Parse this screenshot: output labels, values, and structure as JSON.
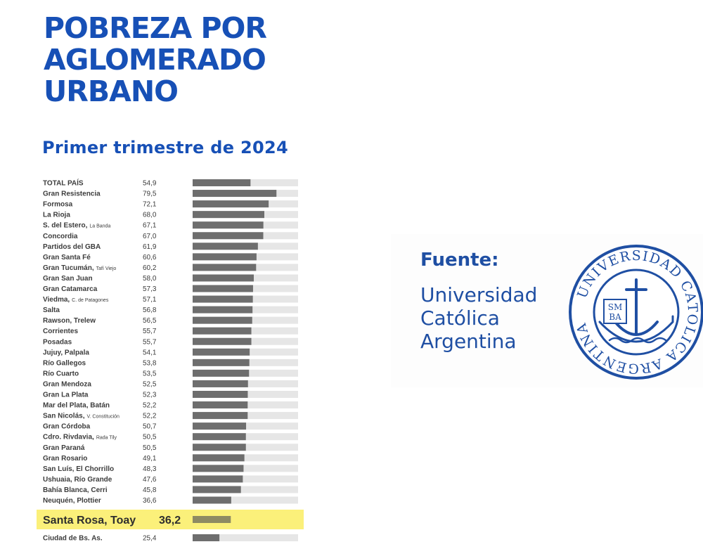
{
  "chart_data": {
    "type": "bar",
    "orientation": "horizontal",
    "title": "POBREZA POR\nAGLOMERADO\nURBANO",
    "subtitle": "Primer trimestre de 2024",
    "xlim": [
      0,
      100
    ],
    "rows": [
      {
        "label": "TOTAL PAÍS",
        "sub": "",
        "value_label": "54,9",
        "value": 54.9
      },
      {
        "label": "Gran Resistencia",
        "sub": "",
        "value_label": "79,5",
        "value": 79.5
      },
      {
        "label": "Formosa",
        "sub": "",
        "value_label": "72,1",
        "value": 72.1
      },
      {
        "label": "La Rioja",
        "sub": "",
        "value_label": "68,0",
        "value": 68.0
      },
      {
        "label": "S. del Estero,",
        "sub": "La Banda",
        "value_label": "67,1",
        "value": 67.1
      },
      {
        "label": "Concordia",
        "sub": "",
        "value_label": "67,0",
        "value": 67.0
      },
      {
        "label": "Partidos del GBA",
        "sub": "",
        "value_label": "61,9",
        "value": 61.9
      },
      {
        "label": "Gran Santa Fé",
        "sub": "",
        "value_label": "60,6",
        "value": 60.6
      },
      {
        "label": "Gran Tucumán,",
        "sub": "Tafí Viejo",
        "value_label": "60,2",
        "value": 60.2
      },
      {
        "label": "Gran San Juan",
        "sub": "",
        "value_label": "58,0",
        "value": 58.0
      },
      {
        "label": "Gran Catamarca",
        "sub": "",
        "value_label": "57,3",
        "value": 57.3
      },
      {
        "label": "Viedma,",
        "sub": "C. de Patagones",
        "value_label": "57,1",
        "value": 57.1
      },
      {
        "label": "Salta",
        "sub": "",
        "value_label": "56,8",
        "value": 56.8
      },
      {
        "label": "Rawson, Trelew",
        "sub": "",
        "value_label": "56,5",
        "value": 56.5
      },
      {
        "label": "Corrientes",
        "sub": "",
        "value_label": "55,7",
        "value": 55.7
      },
      {
        "label": "Posadas",
        "sub": "",
        "value_label": "55,7",
        "value": 55.7
      },
      {
        "label": "Jujuy, Palpala",
        "sub": "",
        "value_label": "54,1",
        "value": 54.1
      },
      {
        "label": "Río Gallegos",
        "sub": "",
        "value_label": "53,8",
        "value": 53.8
      },
      {
        "label": "Río Cuarto",
        "sub": "",
        "value_label": "53,5",
        "value": 53.5
      },
      {
        "label": "Gran Mendoza",
        "sub": "",
        "value_label": "52,5",
        "value": 52.5
      },
      {
        "label": "Gran La Plata",
        "sub": "",
        "value_label": "52,3",
        "value": 52.3
      },
      {
        "label": "Mar del Plata, Batán",
        "sub": "",
        "value_label": "52,2",
        "value": 52.2
      },
      {
        "label": "San Nicolás,",
        "sub": "V. Constitución",
        "value_label": "52,2",
        "value": 52.2
      },
      {
        "label": "Gran Córdoba",
        "sub": "",
        "value_label": "50,7",
        "value": 50.7
      },
      {
        "label": "Cdro. Rivdavia,",
        "sub": "Rada Tily",
        "value_label": "50,5",
        "value": 50.5
      },
      {
        "label": "Gran Paraná",
        "sub": "",
        "value_label": "50,5",
        "value": 50.5
      },
      {
        "label": "Gran Rosario",
        "sub": "",
        "value_label": "49,1",
        "value": 49.1
      },
      {
        "label": "San Luís, El Chorrillo",
        "sub": "",
        "value_label": "48,3",
        "value": 48.3
      },
      {
        "label": "Ushuaia, Río Grande",
        "sub": "",
        "value_label": "47,6",
        "value": 47.6
      },
      {
        "label": "Bahía Blanca, Cerri",
        "sub": "",
        "value_label": "45,8",
        "value": 45.8
      },
      {
        "label": "Neuquén, Plottier",
        "sub": "",
        "value_label": "36,6",
        "value": 36.6
      },
      {
        "label": "Santa Rosa, Toay",
        "sub": "",
        "value_label": "36,2",
        "value": 36.2,
        "highlighted": true
      },
      {
        "label": "Ciudad de Bs. As.",
        "sub": "",
        "value_label": "25,4",
        "value": 25.4
      }
    ],
    "colors": {
      "title": "#1750b6",
      "bar": "#6e6e6e",
      "track": "#e6e6e6",
      "highlight_band": "#fbf07a",
      "highlight_bar": "#8e8a63",
      "label": "#3c3c3c"
    }
  },
  "source": {
    "label": "Fuente:",
    "name": "Universidad\nCatólica\nArgentina",
    "logo": {
      "ring_text": "UNIVERSIDAD CATOLICA ARGENTINA",
      "monogram_top": "SM",
      "monogram_bottom": "BA",
      "color": "#1f4fa3"
    }
  }
}
